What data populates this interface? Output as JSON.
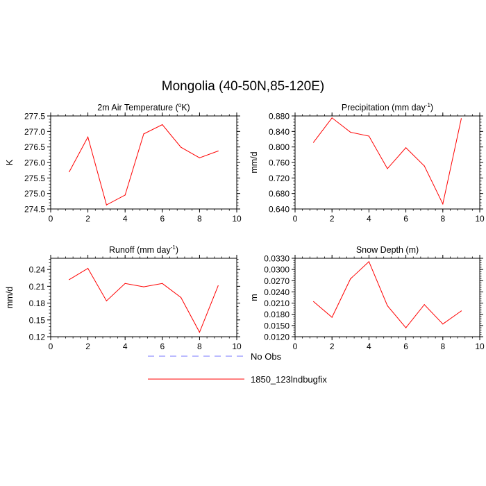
{
  "page": {
    "title": "Mongolia (40-50N,85-120E)"
  },
  "legend": {
    "items": [
      {
        "label": "No Obs",
        "color": "#7777ff",
        "dash": "dashed"
      },
      {
        "label": "1850_123lndbugfix",
        "color": "#ff0000",
        "dash": "solid"
      }
    ]
  },
  "chart_data": [
    {
      "type": "line",
      "title": "2m Air Temperature (",
      "title_sup": "o",
      "title_end": "K)",
      "xlabel": "",
      "ylabel": "K",
      "xlim": [
        0,
        10
      ],
      "ylim": [
        274.5,
        277.5
      ],
      "xticks": [
        0,
        2,
        4,
        6,
        8,
        10
      ],
      "yticks": [
        "274.5",
        "275.0",
        "275.5",
        "276.0",
        "276.5",
        "277.0",
        "277.5"
      ],
      "series": [
        {
          "name": "1850_123lndbugfix",
          "color": "#ff0000",
          "x": [
            1,
            2,
            3,
            4,
            5,
            6,
            7,
            8,
            9
          ],
          "values": [
            275.7,
            276.82,
            274.63,
            274.95,
            276.92,
            277.22,
            276.49,
            276.15,
            276.37
          ]
        }
      ]
    },
    {
      "type": "line",
      "title": "Precipitation (mm day",
      "title_sup": "-1",
      "title_end": ")",
      "xlabel": "",
      "ylabel": "mm/d",
      "xlim": [
        0,
        10
      ],
      "ylim": [
        0.64,
        0.88
      ],
      "xticks": [
        0,
        2,
        4,
        6,
        8,
        10
      ],
      "yticks": [
        "0.640",
        "0.680",
        "0.720",
        "0.760",
        "0.800",
        "0.840",
        "0.880"
      ],
      "series": [
        {
          "name": "1850_123lndbugfix",
          "color": "#ff0000",
          "x": [
            1,
            2,
            3,
            4,
            5,
            6,
            7,
            8,
            9
          ],
          "values": [
            0.812,
            0.875,
            0.838,
            0.828,
            0.744,
            0.798,
            0.751,
            0.653,
            0.873
          ]
        }
      ]
    },
    {
      "type": "line",
      "title": "Runoff (mm day",
      "title_sup": "-1",
      "title_end": ")",
      "xlabel": "",
      "ylabel": "mm/d",
      "xlim": [
        0,
        10
      ],
      "ylim": [
        0.12,
        0.26
      ],
      "xticks": [
        0,
        2,
        4,
        6,
        8,
        10
      ],
      "yticks": [
        "0.12",
        "0.15",
        "0.18",
        "0.21",
        "0.24"
      ],
      "series": [
        {
          "name": "1850_123lndbugfix",
          "color": "#ff0000",
          "x": [
            1,
            2,
            3,
            4,
            5,
            6,
            7,
            8,
            9
          ],
          "values": [
            0.222,
            0.242,
            0.184,
            0.215,
            0.209,
            0.215,
            0.19,
            0.128,
            0.211
          ]
        }
      ]
    },
    {
      "type": "line",
      "title": "Snow Depth (m)",
      "title_sup": "",
      "title_end": "",
      "xlabel": "",
      "ylabel": "m",
      "xlim": [
        0,
        10
      ],
      "ylim": [
        0.012,
        0.033
      ],
      "xticks": [
        0,
        2,
        4,
        6,
        8,
        10
      ],
      "yticks": [
        "0.0120",
        "0.0150",
        "0.0180",
        "0.0210",
        "0.0240",
        "0.0270",
        "0.0300",
        "0.0330"
      ],
      "series": [
        {
          "name": "1850_123lndbugfix",
          "color": "#ff0000",
          "x": [
            1,
            2,
            3,
            4,
            5,
            6,
            7,
            8,
            9
          ],
          "values": [
            0.0214,
            0.0172,
            0.0275,
            0.0321,
            0.0203,
            0.0144,
            0.0206,
            0.0154,
            0.0189
          ]
        }
      ]
    }
  ]
}
